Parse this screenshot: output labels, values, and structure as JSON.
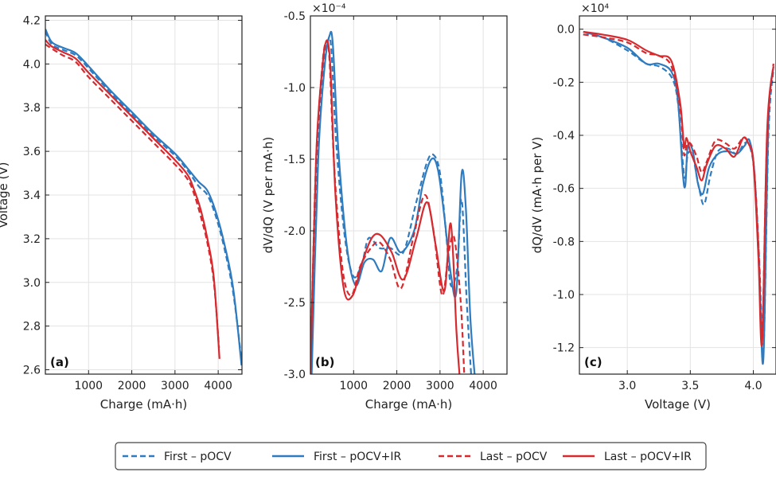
{
  "colors": {
    "blue": "#2f7bbf",
    "red": "#d62a2f",
    "grid": "#e3e3e3",
    "axis": "#222222"
  },
  "legend": {
    "entries": [
      {
        "label": "First – pOCV",
        "color": "#2f7bbf",
        "dash": true
      },
      {
        "label": "First – pOCV+IR",
        "color": "#2f7bbf",
        "dash": false
      },
      {
        "label": "Last – pOCV",
        "color": "#d62a2f",
        "dash": true
      },
      {
        "label": "Last – pOCV+IR",
        "color": "#d62a2f",
        "dash": false
      }
    ]
  },
  "chart_data": [
    {
      "type": "line",
      "panel_label": "(a)",
      "xlabel": "Charge (mA·h)",
      "ylabel": "Voltage (V)",
      "xlim": [
        0,
        4550
      ],
      "ylim": [
        2.58,
        4.22
      ],
      "xticks": [
        1000,
        2000,
        3000,
        4000
      ],
      "xtick_labels": [
        "1000",
        "2000",
        "3000",
        "4000"
      ],
      "yticks": [
        2.6,
        2.8,
        3.0,
        3.2,
        3.4,
        3.6,
        3.8,
        4.0,
        4.2
      ],
      "ytick_labels": [
        "2.6",
        "2.8",
        "3.0",
        "3.2",
        "3.4",
        "3.6",
        "3.8",
        "4.0",
        "4.2"
      ],
      "series": [
        {
          "name": "First – pOCV",
          "color": "blue",
          "dash": true,
          "x": [
            0,
            150,
            400,
            700,
            1000,
            1500,
            2000,
            2500,
            3000,
            3300,
            3550,
            3750,
            3950,
            4150,
            4350,
            4530
          ],
          "y": [
            4.15,
            4.09,
            4.065,
            4.04,
            3.98,
            3.87,
            3.77,
            3.67,
            3.58,
            3.51,
            3.44,
            3.4,
            3.3,
            3.15,
            2.95,
            2.66
          ]
        },
        {
          "name": "First – pOCV+IR",
          "color": "blue",
          "dash": false,
          "x": [
            0,
            150,
            400,
            700,
            1000,
            1500,
            2000,
            2500,
            3000,
            3300,
            3550,
            3750,
            3950,
            4150,
            4350,
            4540
          ],
          "y": [
            4.16,
            4.1,
            4.075,
            4.05,
            3.99,
            3.88,
            3.78,
            3.68,
            3.59,
            3.52,
            3.46,
            3.42,
            3.32,
            3.17,
            2.97,
            2.62
          ]
        },
        {
          "name": "Last – pOCV",
          "color": "red",
          "dash": true,
          "x": [
            0,
            150,
            400,
            700,
            1000,
            1500,
            2000,
            2500,
            3000,
            3300,
            3450,
            3600,
            3750,
            3900,
            4020
          ],
          "y": [
            4.09,
            4.07,
            4.04,
            4.01,
            3.94,
            3.84,
            3.74,
            3.64,
            3.54,
            3.47,
            3.4,
            3.3,
            3.18,
            3.0,
            2.7
          ]
        },
        {
          "name": "Last – pOCV+IR",
          "color": "red",
          "dash": false,
          "x": [
            0,
            150,
            400,
            700,
            1000,
            1500,
            2000,
            2500,
            3000,
            3300,
            3450,
            3600,
            3750,
            3900,
            4030
          ],
          "y": [
            4.11,
            4.08,
            4.055,
            4.025,
            3.96,
            3.86,
            3.76,
            3.66,
            3.56,
            3.49,
            3.42,
            3.33,
            3.2,
            3.02,
            2.65
          ]
        }
      ]
    },
    {
      "type": "line",
      "panel_label": "(b)",
      "xlabel": "Charge (mA·h)",
      "ylabel": "dV/dQ (V per mA·h)",
      "scale_label": "×10⁻⁴",
      "xlim": [
        0,
        4550
      ],
      "ylim": [
        -3.0,
        -0.5
      ],
      "xticks": [
        1000,
        2000,
        3000,
        4000
      ],
      "xtick_labels": [
        "1000",
        "2000",
        "3000",
        "4000"
      ],
      "yticks": [
        -3.0,
        -2.5,
        -2.0,
        -1.5,
        -1.0,
        -0.5
      ],
      "ytick_labels": [
        "-3.0",
        "-2.5",
        "-2.0",
        "-1.5",
        "-1.0",
        "-0.5"
      ],
      "series": [
        {
          "name": "First – pOCV",
          "color": "blue",
          "dash": true,
          "x": [
            10,
            150,
            300,
            400,
            480,
            600,
            800,
            1000,
            1200,
            1350,
            1600,
            1850,
            2150,
            2450,
            2700,
            2850,
            3000,
            3150,
            3250,
            3400,
            3500,
            3620,
            3720
          ],
          "y": [
            -3.0,
            -1.6,
            -0.85,
            -0.68,
            -0.72,
            -1.4,
            -2.05,
            -2.32,
            -2.22,
            -2.05,
            -2.12,
            -2.12,
            -2.15,
            -1.8,
            -1.52,
            -1.47,
            -1.6,
            -2.05,
            -2.38,
            -2.25,
            -1.78,
            -2.5,
            -3.0
          ]
        },
        {
          "name": "First – pOCV+IR",
          "color": "blue",
          "dash": false,
          "x": [
            30,
            180,
            330,
            440,
            520,
            650,
            850,
            1050,
            1250,
            1450,
            1650,
            1850,
            2100,
            2400,
            2600,
            2800,
            2950,
            3100,
            3250,
            3380,
            3500,
            3600,
            3700,
            3800
          ],
          "y": [
            -3.0,
            -1.5,
            -0.85,
            -0.64,
            -0.7,
            -1.45,
            -2.12,
            -2.38,
            -2.22,
            -2.2,
            -2.28,
            -2.05,
            -2.15,
            -2.0,
            -1.68,
            -1.5,
            -1.57,
            -1.9,
            -2.3,
            -2.42,
            -1.6,
            -1.85,
            -2.6,
            -3.0
          ]
        },
        {
          "name": "Last – pOCV",
          "color": "red",
          "dash": true,
          "x": [
            0,
            120,
            260,
            360,
            440,
            560,
            750,
            950,
            1150,
            1400,
            1600,
            1850,
            2100,
            2400,
            2650,
            2850,
            3050,
            3200,
            3330,
            3480,
            3560
          ],
          "y": [
            -3.0,
            -1.6,
            -0.9,
            -0.68,
            -0.8,
            -1.6,
            -2.28,
            -2.45,
            -2.25,
            -2.12,
            -2.08,
            -2.2,
            -2.4,
            -2.02,
            -1.75,
            -2.0,
            -2.45,
            -2.15,
            -2.05,
            -2.5,
            -3.0
          ]
        },
        {
          "name": "Last – pOCV+IR",
          "color": "red",
          "dash": false,
          "x": [
            0,
            130,
            270,
            370,
            460,
            580,
            770,
            980,
            1200,
            1420,
            1620,
            1880,
            2150,
            2450,
            2700,
            2900,
            3100,
            3250,
            3380,
            3450
          ],
          "y": [
            -3.0,
            -1.5,
            -0.88,
            -0.68,
            -0.85,
            -1.75,
            -2.4,
            -2.45,
            -2.22,
            -2.05,
            -2.03,
            -2.15,
            -2.34,
            -2.05,
            -1.8,
            -2.1,
            -2.42,
            -1.95,
            -2.7,
            -3.0
          ]
        }
      ]
    },
    {
      "type": "line",
      "panel_label": "(c)",
      "xlabel": "Voltage (V)",
      "ylabel": "dQ/dV (mA·h per V)",
      "scale_label": "×10⁴",
      "xlim": [
        2.62,
        4.18
      ],
      "ylim": [
        -1.3,
        0.05
      ],
      "xticks": [
        3.0,
        3.5,
        4.0
      ],
      "xtick_labels": [
        "3.0",
        "3.5",
        "4.0"
      ],
      "yticks": [
        0.0,
        -0.2,
        -0.4,
        -0.6,
        -0.8,
        -1.0,
        -1.2
      ],
      "ytick_labels": [
        "0.0",
        "-0.2",
        "-0.4",
        "-0.6",
        "-0.8",
        "-1.0",
        "-1.2"
      ],
      "series": [
        {
          "name": "First – pOCV",
          "color": "blue",
          "dash": true,
          "x": [
            2.65,
            2.8,
            3.0,
            3.15,
            3.25,
            3.35,
            3.4,
            3.44,
            3.46,
            3.48,
            3.52,
            3.57,
            3.61,
            3.66,
            3.72,
            3.8,
            3.87,
            3.93,
            3.97,
            4.01,
            4.05,
            4.08,
            4.12,
            4.16
          ],
          "y": [
            -0.02,
            -0.03,
            -0.08,
            -0.13,
            -0.14,
            -0.18,
            -0.27,
            -0.5,
            -0.56,
            -0.47,
            -0.48,
            -0.6,
            -0.66,
            -0.55,
            -0.46,
            -0.45,
            -0.47,
            -0.43,
            -0.44,
            -0.55,
            -0.9,
            -1.22,
            -0.4,
            -0.15
          ]
        },
        {
          "name": "First – pOCV+IR",
          "color": "blue",
          "dash": false,
          "x": [
            2.65,
            2.8,
            3.0,
            3.15,
            3.25,
            3.35,
            3.4,
            3.44,
            3.46,
            3.48,
            3.52,
            3.56,
            3.6,
            3.65,
            3.72,
            3.8,
            3.87,
            3.93,
            3.97,
            4.01,
            4.05,
            4.08,
            4.12,
            4.16
          ],
          "y": [
            -0.01,
            -0.03,
            -0.07,
            -0.13,
            -0.13,
            -0.16,
            -0.26,
            -0.54,
            -0.59,
            -0.44,
            -0.46,
            -0.58,
            -0.62,
            -0.52,
            -0.47,
            -0.46,
            -0.47,
            -0.44,
            -0.42,
            -0.55,
            -0.95,
            -1.24,
            -0.35,
            -0.14
          ]
        },
        {
          "name": "Last – pOCV",
          "color": "red",
          "dash": true,
          "x": [
            2.65,
            2.8,
            3.0,
            3.15,
            3.25,
            3.35,
            3.42,
            3.45,
            3.47,
            3.5,
            3.55,
            3.59,
            3.63,
            3.7,
            3.78,
            3.85,
            3.92,
            3.96,
            4.0,
            4.04,
            4.07,
            4.11,
            4.16
          ],
          "y": [
            -0.02,
            -0.03,
            -0.05,
            -0.09,
            -0.1,
            -0.14,
            -0.3,
            -0.47,
            -0.44,
            -0.43,
            -0.48,
            -0.54,
            -0.5,
            -0.42,
            -0.43,
            -0.45,
            -0.41,
            -0.43,
            -0.5,
            -0.8,
            -1.15,
            -0.4,
            -0.13
          ]
        },
        {
          "name": "Last – pOCV+IR",
          "color": "red",
          "dash": false,
          "x": [
            2.65,
            2.8,
            3.0,
            3.15,
            3.25,
            3.35,
            3.42,
            3.45,
            3.47,
            3.5,
            3.55,
            3.59,
            3.63,
            3.7,
            3.78,
            3.85,
            3.92,
            3.96,
            4.0,
            4.04,
            4.07,
            4.11,
            4.16
          ],
          "y": [
            -0.01,
            -0.02,
            -0.04,
            -0.08,
            -0.1,
            -0.12,
            -0.28,
            -0.44,
            -0.41,
            -0.46,
            -0.52,
            -0.57,
            -0.51,
            -0.44,
            -0.45,
            -0.48,
            -0.41,
            -0.43,
            -0.5,
            -0.85,
            -1.18,
            -0.38,
            -0.14
          ]
        }
      ]
    }
  ]
}
